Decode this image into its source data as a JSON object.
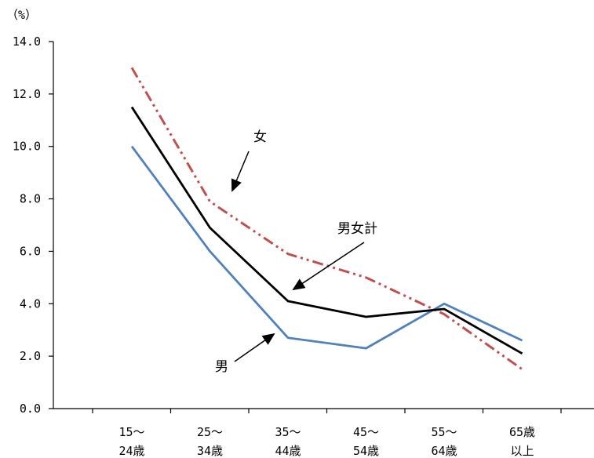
{
  "chart_data": {
    "type": "line",
    "unit_label": "（%）",
    "categories": [
      [
        "15～",
        "24歳"
      ],
      [
        "25～",
        "34歳"
      ],
      [
        "35～",
        "44歳"
      ],
      [
        "45～",
        "54歳"
      ],
      [
        "55～",
        "64歳"
      ],
      [
        "65歳",
        "以上"
      ]
    ],
    "ylim": [
      0,
      14
    ],
    "yticks": [
      "0.0",
      "2.0",
      "4.0",
      "6.0",
      "8.0",
      "10.0",
      "12.0",
      "14.0"
    ],
    "grid": false,
    "series": [
      {
        "name": "男女計",
        "values": [
          11.5,
          6.9,
          4.1,
          3.5,
          3.8,
          2.1
        ],
        "color": "#000000",
        "style": "solid"
      },
      {
        "name": "男",
        "values": [
          10.0,
          6.0,
          2.7,
          2.3,
          4.0,
          2.6
        ],
        "color": "#4f81bd",
        "style": "solid"
      },
      {
        "name": "女",
        "values": [
          13.0,
          7.9,
          5.9,
          5.0,
          3.6,
          1.5
        ],
        "color": "#c0504d",
        "style": "dash-dot-dot"
      }
    ]
  }
}
